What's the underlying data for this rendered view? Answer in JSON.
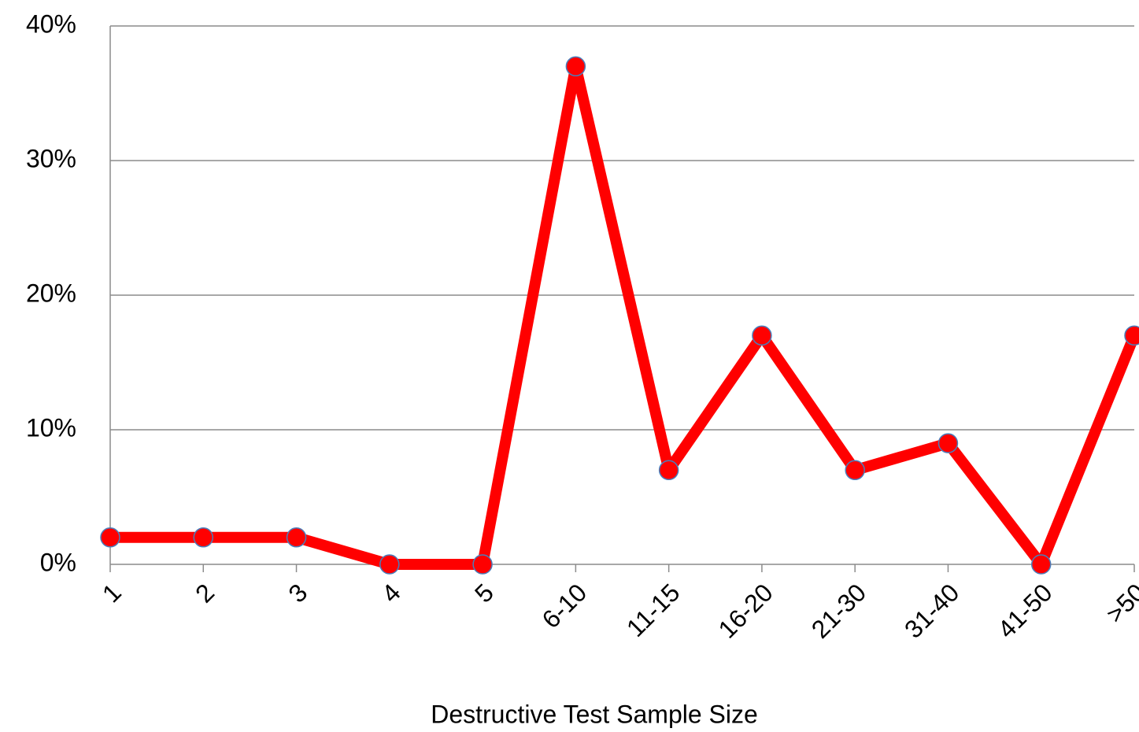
{
  "chart_data": {
    "type": "line",
    "x_label": "Destructive Test Sample Size",
    "categories": [
      "1",
      "2",
      "3",
      "4",
      "5",
      "6-10",
      "11-15",
      "16-20",
      "21-30",
      "31-40",
      "41-50",
      ">50"
    ],
    "series": [
      {
        "color": "#ff0000",
        "marker_edge": "#4a7ebb",
        "values": [
          2,
          2,
          2,
          0,
          0,
          37,
          7,
          17,
          7,
          9,
          0,
          17
        ]
      }
    ],
    "ylim": [
      0,
      40
    ],
    "yticks": [
      {
        "value": 0,
        "label": "0%"
      },
      {
        "value": 10,
        "label": "10%"
      },
      {
        "value": 20,
        "label": "20%"
      },
      {
        "value": 30,
        "label": "30%"
      },
      {
        "value": 40,
        "label": "40%"
      }
    ],
    "grid": true
  }
}
